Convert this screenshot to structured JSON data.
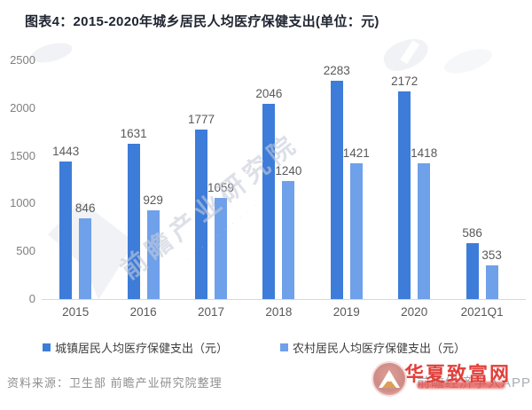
{
  "title": "图表4：2015-2020年城乡居民人均医疗保健支出(单位：元)",
  "source_note": "资料来源：卫生部 前瞻产业研究院整理",
  "watermarks": {
    "diagonal_text": "前瞻产业研究院",
    "bottom_right_red": "华夏致富网",
    "bottom_right_gray": "前瞻经济学人APP"
  },
  "colors": {
    "urban_bar": "#3d7cd9",
    "rural_bar": "#6fa0ea",
    "axis_line": "#d8d8d8",
    "tick_text": "#7f7f7f",
    "value_text": "#595959",
    "watermark_red": "#e2403b"
  },
  "chart_data": {
    "type": "bar",
    "title": "图表4：2015-2020年城乡居民人均医疗保健支出(单位：元)",
    "categories": [
      "2015",
      "2016",
      "2017",
      "2018",
      "2019",
      "2020",
      "2021Q1"
    ],
    "series": [
      {
        "name": "城镇居民人均医疗保健支出（元）",
        "color": "#3d7cd9",
        "values": [
          1443,
          1631,
          1777,
          2046,
          2283,
          2172,
          586
        ]
      },
      {
        "name": "农村居民人均医疗保健支出（元）",
        "color": "#6fa0ea",
        "values": [
          846,
          929,
          1059,
          1240,
          1421,
          1418,
          353
        ]
      }
    ],
    "xlabel": "",
    "ylabel": "",
    "ylim": [
      0,
      2500
    ],
    "yticks": [
      0,
      500,
      1000,
      1500,
      2000,
      2500
    ],
    "grid": false,
    "legend_position": "bottom",
    "value_labels": true
  }
}
